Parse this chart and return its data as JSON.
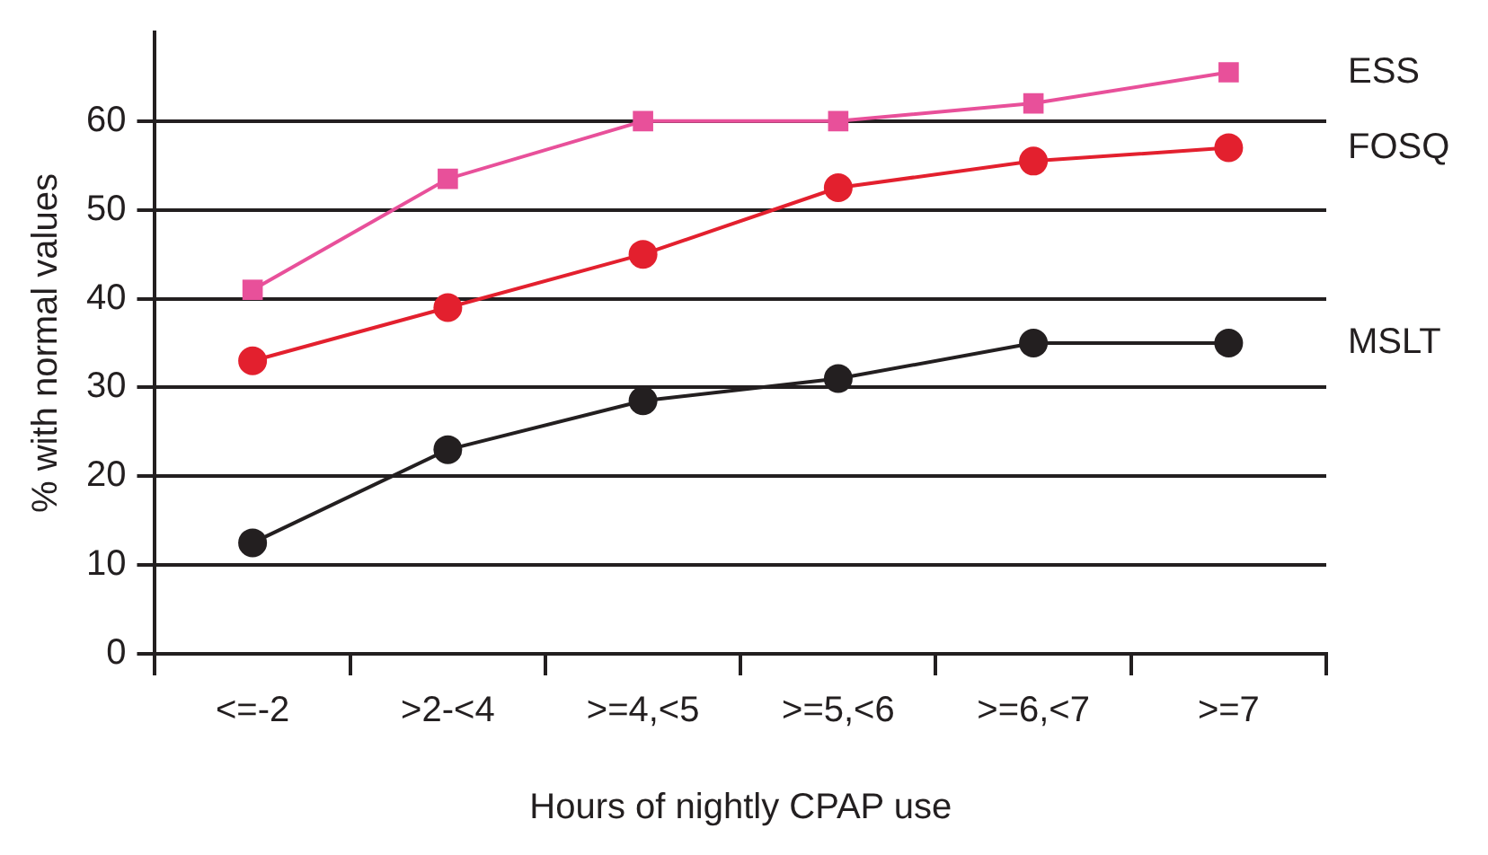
{
  "chart_data": {
    "type": "line",
    "xlabel": "Hours of nightly CPAP use",
    "ylabel": "% with normal values",
    "categories": [
      "<=-2",
      ">2-<4",
      ">=4,<5",
      ">=5,<6",
      ">=6,<7",
      ">=7"
    ],
    "series": [
      {
        "name": "ESS",
        "color": "#e8509a",
        "marker": "square",
        "values": [
          41,
          53.5,
          60,
          60,
          62,
          65.5
        ]
      },
      {
        "name": "FOSQ",
        "color": "#e3202e",
        "marker": "circle",
        "values": [
          33,
          39,
          45,
          52.5,
          55.5,
          57
        ]
      },
      {
        "name": "MSLT",
        "color": "#231f20",
        "marker": "circle",
        "values": [
          12.5,
          23,
          28.5,
          31,
          35,
          35
        ]
      }
    ],
    "ylim": [
      0,
      70
    ],
    "yticks": [
      0,
      10,
      20,
      30,
      40,
      50,
      60
    ],
    "grid": "y",
    "legend": false
  }
}
